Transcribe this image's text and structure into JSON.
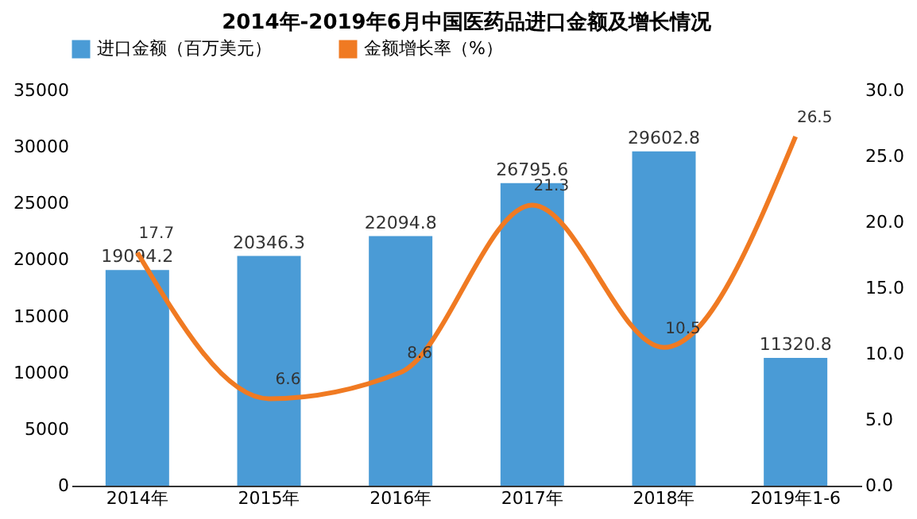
{
  "chart_data": {
    "type": "bar",
    "title": "2014年-2019年6月中国医药品进口金额及增长情况",
    "categories": [
      "2014年",
      "2015年",
      "2016年",
      "2017年",
      "2018年",
      "2019年1-6"
    ],
    "series": [
      {
        "name": "进口金额（百万美元）",
        "color": "#4a9bd6",
        "values": [
          19094.2,
          20346.3,
          22094.8,
          26795.6,
          29602.8,
          11320.8
        ]
      },
      {
        "name": "金额增长率（%）",
        "type": "line",
        "axis": "y2",
        "color": "#f07a22",
        "values": [
          17.7,
          6.6,
          8.6,
          21.3,
          10.5,
          26.5
        ]
      }
    ],
    "ylim": [
      0,
      35000
    ],
    "yticks": [
      0,
      5000,
      10000,
      15000,
      20000,
      25000,
      30000,
      35000
    ],
    "y2lim": [
      0,
      30
    ],
    "y2ticks": [
      {
        "value": 0,
        "label": "0.0"
      },
      {
        "value": 5,
        "label": "5.0"
      },
      {
        "value": 10,
        "label": "10.0"
      },
      {
        "value": 15,
        "label": "15.0"
      },
      {
        "value": 20,
        "label": "20.0"
      },
      {
        "value": 25,
        "label": "25.0"
      },
      {
        "value": 30,
        "label": "30.0"
      }
    ],
    "data_labels": true,
    "legend": "top",
    "grid": false,
    "marker": "none",
    "line_style": "solid"
  }
}
